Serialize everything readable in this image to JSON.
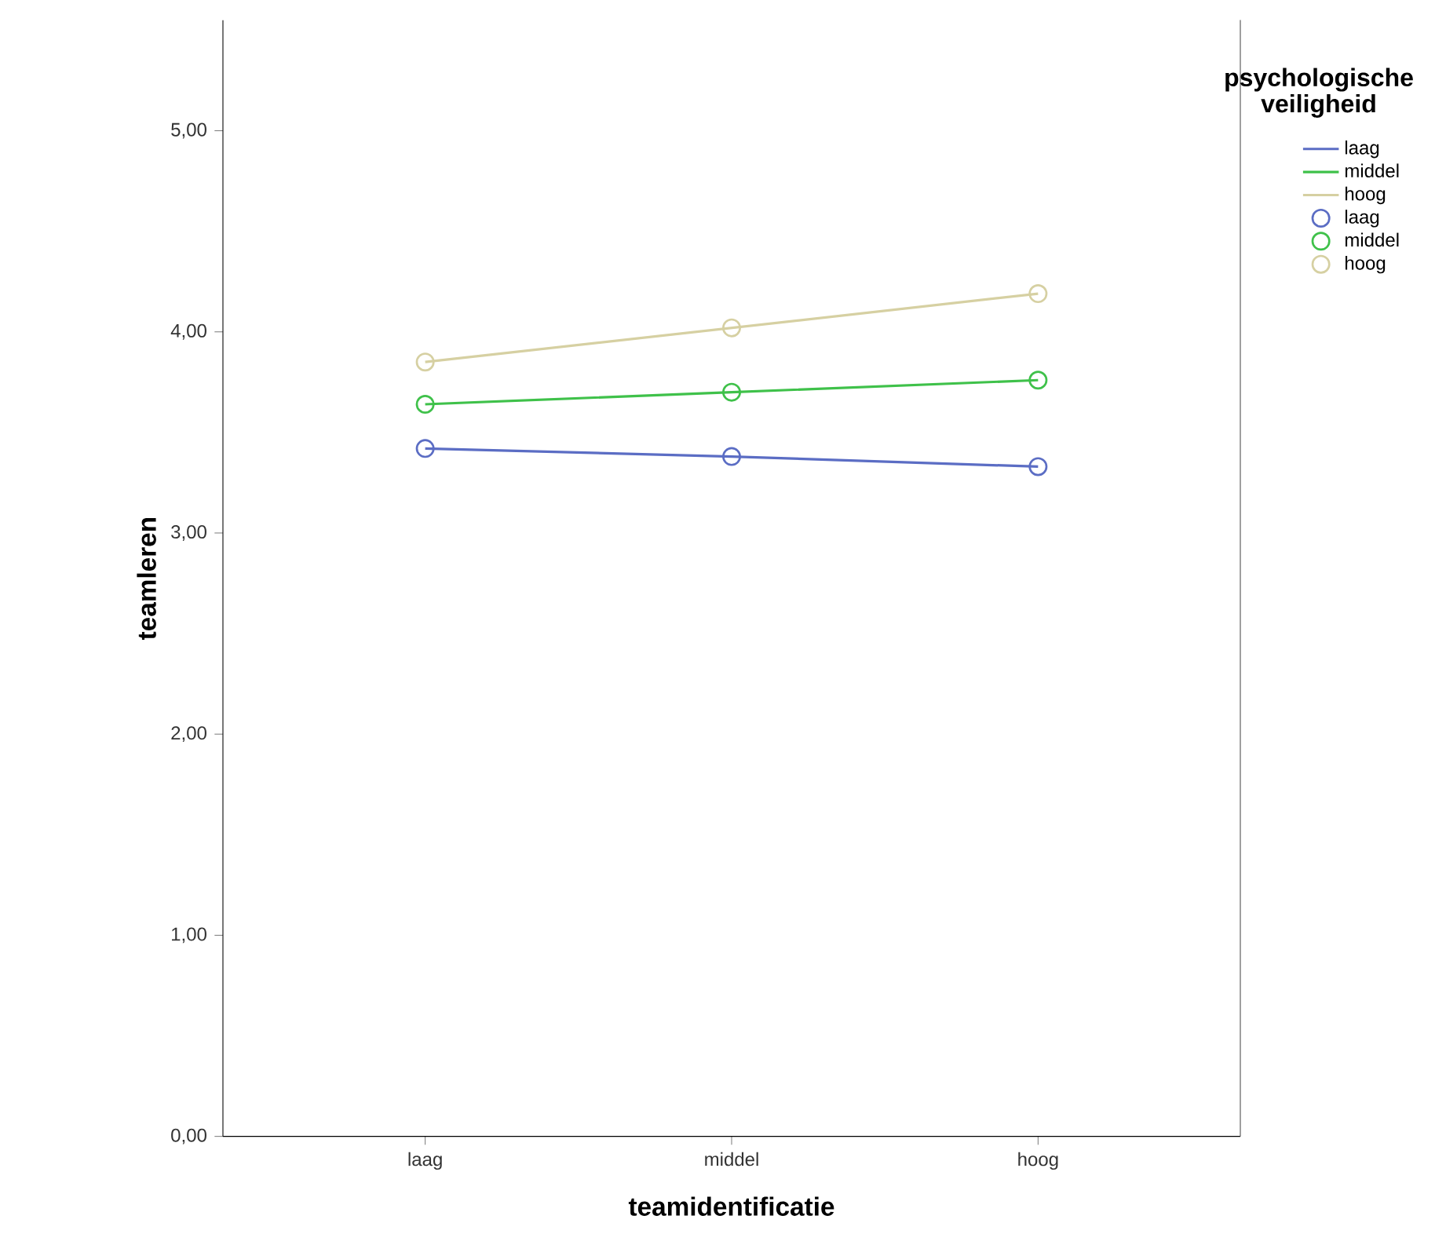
{
  "chart_data": {
    "type": "line",
    "xlabel": "teamidentificatie",
    "ylabel": "teamleren",
    "legend_title": "psychologische veiligheid",
    "legend": "right",
    "grid": false,
    "categories": [
      "laag",
      "middel",
      "hoog"
    ],
    "ylim": [
      0,
      5.55
    ],
    "yticks": [
      {
        "value": 0,
        "label": "0,00"
      },
      {
        "value": 1,
        "label": "1,00"
      },
      {
        "value": 2,
        "label": "2,00"
      },
      {
        "value": 3,
        "label": "3,00"
      },
      {
        "value": 4,
        "label": "4,00"
      },
      {
        "value": 5,
        "label": "5,00"
      }
    ],
    "series": [
      {
        "name": "laag",
        "marker": "none",
        "color": "#5b6dc4",
        "values": [
          3.42,
          3.38,
          3.33
        ]
      },
      {
        "name": "middel",
        "marker": "none",
        "color": "#3fc14a",
        "values": [
          3.64,
          3.7,
          3.76
        ]
      },
      {
        "name": "hoog",
        "marker": "none",
        "color": "#d6d0a2",
        "values": [
          3.85,
          4.02,
          4.19
        ]
      },
      {
        "name": "laag",
        "type": "scatter",
        "marker": "circle",
        "color": "#5b6dc4",
        "values": [
          3.42,
          3.38,
          3.33
        ]
      },
      {
        "name": "middel",
        "type": "scatter",
        "marker": "circle",
        "color": "#3fc14a",
        "values": [
          3.64,
          3.7,
          3.76
        ]
      },
      {
        "name": "hoog",
        "type": "scatter",
        "marker": "circle",
        "color": "#d6d0a2",
        "values": [
          3.85,
          4.02,
          4.19
        ]
      }
    ]
  }
}
